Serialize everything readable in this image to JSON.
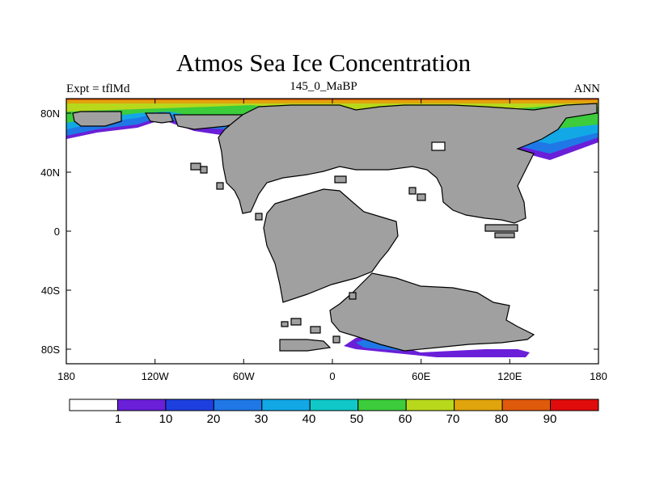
{
  "title": "Atmos Sea Ice Concentration",
  "subtitle_left": "Expt = tflMd",
  "subtitle_center": "145_0_MaBP",
  "subtitle_right": "ANN",
  "x_ticks": [
    "180",
    "120W",
    "60W",
    "0",
    "60E",
    "120E",
    "180"
  ],
  "y_ticks": [
    "80N",
    "40N",
    "0",
    "40S",
    "80S"
  ],
  "colorbar": {
    "labels": [
      "1",
      "10",
      "20",
      "30",
      "40",
      "50",
      "60",
      "70",
      "80",
      "90"
    ],
    "colors": [
      "#ffffff",
      "#6a1fd8",
      "#1e3fe0",
      "#1f78e6",
      "#12a8e6",
      "#10c8c8",
      "#3ccc3c",
      "#b8d81c",
      "#e0a40c",
      "#e05a0c",
      "#e00c0c"
    ]
  },
  "colors": {
    "land": "#a0a0a0",
    "ice_edge": "#6a1fd8"
  }
}
